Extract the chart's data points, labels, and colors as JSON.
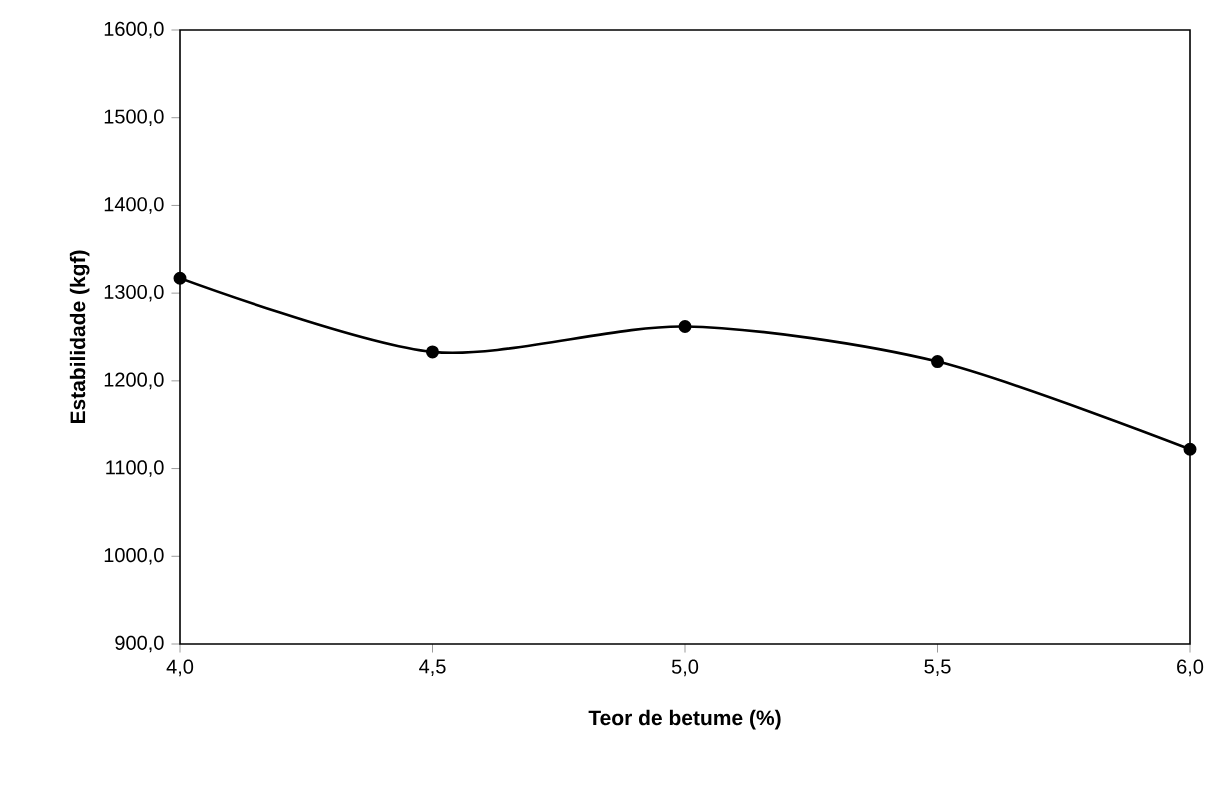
{
  "chart_data": {
    "type": "line",
    "xlabel": "Teor de betume (%)",
    "ylabel": "Estabilidade (kgf)",
    "x": [
      4.0,
      4.5,
      5.0,
      5.5,
      6.0
    ],
    "series": [
      {
        "color": "#000000",
        "values": [
          1317,
          1233,
          1262,
          1222,
          1122
        ]
      }
    ],
    "xlim": [
      4.0,
      6.0
    ],
    "ylim": [
      900,
      1600
    ],
    "xticks": [
      {
        "value": 4.0,
        "label": "4,0"
      },
      {
        "value": 4.5,
        "label": "4,5"
      },
      {
        "value": 5.0,
        "label": "5,0"
      },
      {
        "value": 5.5,
        "label": "5,5"
      },
      {
        "value": 6.0,
        "label": "6,0"
      }
    ],
    "yticks": [
      {
        "value": 900,
        "label": "900,0"
      },
      {
        "value": 1000,
        "label": "1000,0"
      },
      {
        "value": 1100,
        "label": "1100,0"
      },
      {
        "value": 1200,
        "label": "1200,0"
      },
      {
        "value": 1300,
        "label": "1300,0"
      },
      {
        "value": 1400,
        "label": "1400,0"
      },
      {
        "value": 1500,
        "label": "1500,0"
      },
      {
        "value": 1600,
        "label": "1600,0"
      }
    ],
    "marker": "circle",
    "line_style": "solid"
  }
}
